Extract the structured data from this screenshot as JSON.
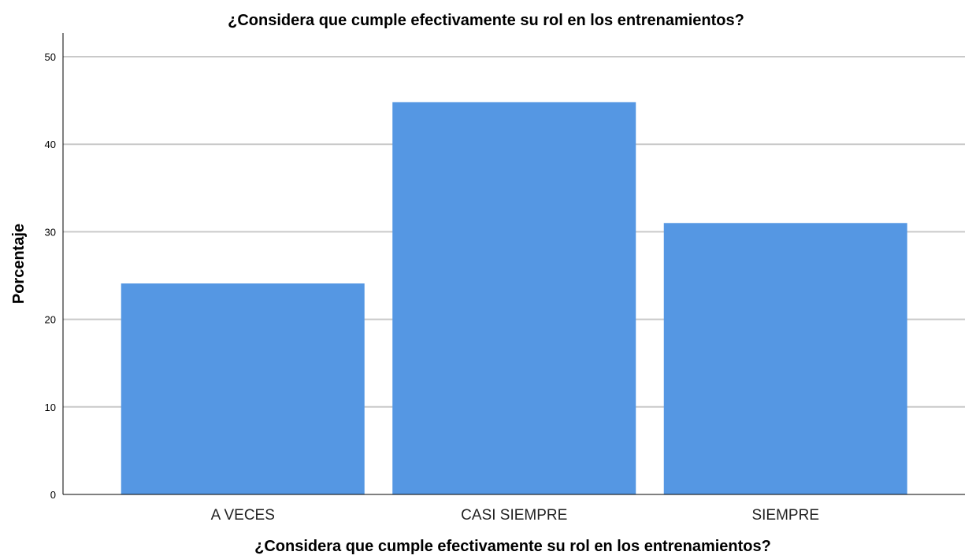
{
  "chart_data": {
    "type": "bar",
    "title": "¿Considera que cumple efectivamente su rol en los entrenamientos?",
    "xlabel": "¿Considera que cumple efectivamente su rol en los entrenamientos?",
    "ylabel": "Porcentaje",
    "categories": [
      "A VECES",
      "CASI SIEMPRE",
      "SIEMPRE"
    ],
    "values": [
      24.1,
      44.8,
      31.0
    ],
    "ylim": [
      0,
      52
    ],
    "yticks": [
      "0",
      "10",
      "20",
      "30",
      "40",
      "50"
    ],
    "grid": true,
    "legend": "none",
    "bar_color": "#5597e3"
  }
}
